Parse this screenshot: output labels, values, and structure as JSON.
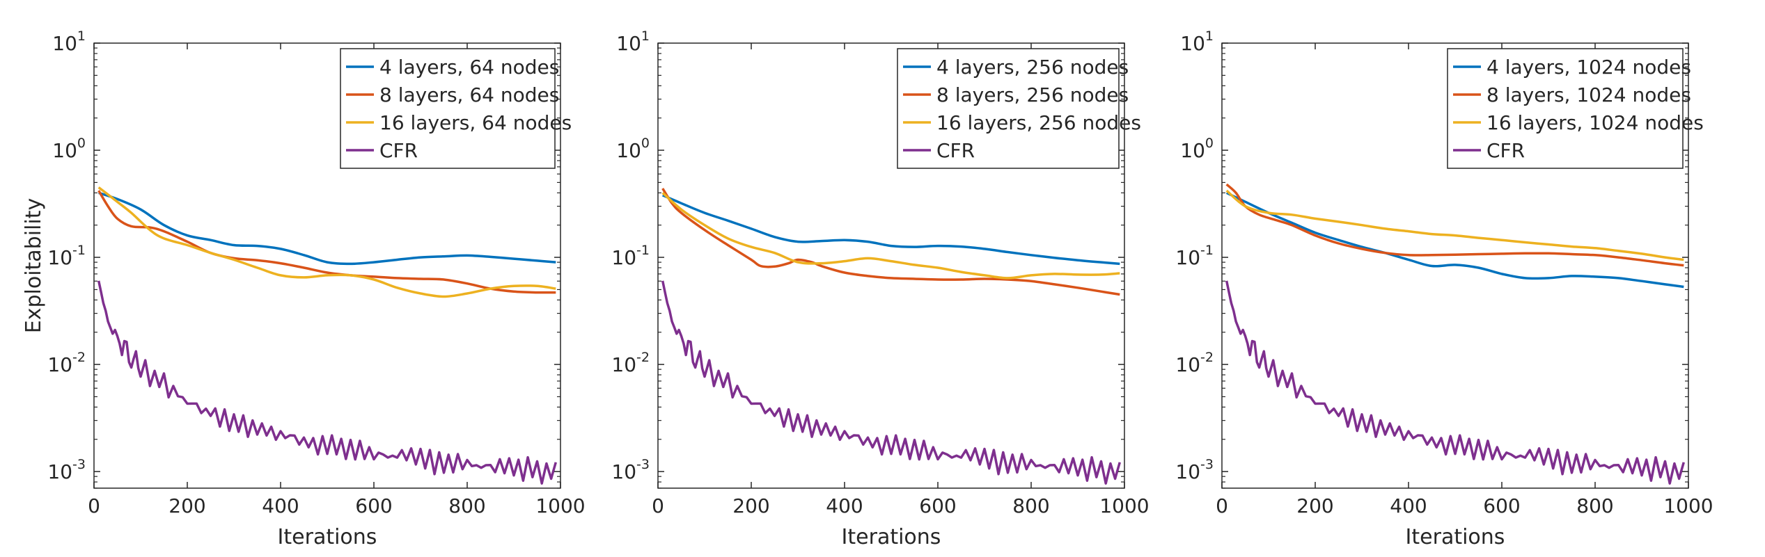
{
  "figure": {
    "ylabel": "Exploitability"
  },
  "colors": {
    "blue": "#0072BD",
    "orange": "#D95319",
    "yellow": "#EDB120",
    "purple": "#7E2F8E"
  },
  "chart_data": [
    {
      "type": "line",
      "xlabel": "Iterations",
      "ylabel": "Exploitability",
      "yscale": "log",
      "xlim": [
        0,
        1000
      ],
      "ylim": [
        0.0007,
        10
      ],
      "xticks": [
        0,
        200,
        400,
        600,
        800,
        1000
      ],
      "xtick_labels": [
        "0",
        "200",
        "400",
        "600",
        "800",
        "1000"
      ],
      "yticks": [
        {
          "base": "10",
          "exp": "-3"
        },
        {
          "base": "10",
          "exp": "-2"
        },
        {
          "base": "10",
          "exp": "-1"
        },
        {
          "base": "10",
          "exp": "0"
        },
        {
          "base": "10",
          "exp": "1"
        }
      ],
      "legend_position": "top-right",
      "grid": false,
      "series": [
        {
          "name": "4 layers, 64 nodes",
          "color": "blue",
          "x": [
            10,
            50,
            100,
            150,
            200,
            250,
            300,
            350,
            400,
            450,
            500,
            550,
            600,
            650,
            700,
            750,
            800,
            850,
            900,
            950,
            990
          ],
          "y": [
            0.4,
            0.35,
            0.28,
            0.2,
            0.16,
            0.145,
            0.13,
            0.128,
            0.12,
            0.105,
            0.09,
            0.087,
            0.09,
            0.095,
            0.1,
            0.102,
            0.104,
            0.101,
            0.097,
            0.093,
            0.09
          ]
        },
        {
          "name": "8 layers, 64 nodes",
          "color": "orange",
          "x": [
            10,
            30,
            50,
            80,
            120,
            150,
            200,
            250,
            300,
            350,
            400,
            450,
            500,
            550,
            600,
            650,
            700,
            750,
            800,
            850,
            900,
            950,
            990
          ],
          "y": [
            0.42,
            0.3,
            0.23,
            0.195,
            0.19,
            0.175,
            0.14,
            0.11,
            0.098,
            0.094,
            0.088,
            0.08,
            0.072,
            0.068,
            0.066,
            0.064,
            0.063,
            0.062,
            0.057,
            0.051,
            0.048,
            0.047,
            0.047
          ]
        },
        {
          "name": "16 layers, 64 nodes",
          "color": "yellow",
          "x": [
            10,
            50,
            80,
            120,
            150,
            200,
            250,
            300,
            350,
            400,
            450,
            500,
            550,
            600,
            650,
            700,
            750,
            800,
            850,
            900,
            950,
            990
          ],
          "y": [
            0.45,
            0.33,
            0.26,
            0.18,
            0.15,
            0.13,
            0.11,
            0.095,
            0.08,
            0.068,
            0.065,
            0.068,
            0.068,
            0.062,
            0.052,
            0.046,
            0.043,
            0.046,
            0.051,
            0.054,
            0.054,
            0.051
          ]
        },
        {
          "name": "CFR",
          "color": "purple",
          "kind": "cfr",
          "seed": 7,
          "x": [
            10,
            20,
            30,
            40,
            60,
            80,
            100,
            150,
            200,
            250,
            300,
            400,
            500,
            600,
            700,
            800,
            900,
            990
          ],
          "y": [
            0.06,
            0.04,
            0.025,
            0.021,
            0.015,
            0.0115,
            0.0095,
            0.0065,
            0.0045,
            0.0035,
            0.0029,
            0.0022,
            0.00175,
            0.00148,
            0.0013,
            0.00117,
            0.00108,
            0.001
          ]
        }
      ]
    },
    {
      "type": "line",
      "xlabel": "Iterations",
      "ylabel": "",
      "yscale": "log",
      "xlim": [
        0,
        1000
      ],
      "ylim": [
        0.0007,
        10
      ],
      "xticks": [
        0,
        200,
        400,
        600,
        800,
        1000
      ],
      "xtick_labels": [
        "0",
        "200",
        "400",
        "600",
        "800",
        "1000"
      ],
      "yticks": [
        {
          "base": "10",
          "exp": "-3"
        },
        {
          "base": "10",
          "exp": "-2"
        },
        {
          "base": "10",
          "exp": "-1"
        },
        {
          "base": "10",
          "exp": "0"
        },
        {
          "base": "10",
          "exp": "1"
        }
      ],
      "legend_position": "top-right",
      "grid": false,
      "series": [
        {
          "name": "4 layers, 256 nodes",
          "color": "blue",
          "x": [
            10,
            50,
            100,
            150,
            200,
            250,
            300,
            350,
            400,
            450,
            500,
            550,
            600,
            650,
            700,
            750,
            800,
            850,
            900,
            950,
            990
          ],
          "y": [
            0.38,
            0.32,
            0.26,
            0.22,
            0.185,
            0.155,
            0.14,
            0.142,
            0.145,
            0.14,
            0.128,
            0.125,
            0.128,
            0.126,
            0.12,
            0.112,
            0.105,
            0.099,
            0.094,
            0.09,
            0.087
          ]
        },
        {
          "name": "8 layers, 256 nodes",
          "color": "orange",
          "x": [
            10,
            30,
            50,
            100,
            150,
            200,
            220,
            250,
            280,
            300,
            330,
            350,
            400,
            450,
            500,
            550,
            600,
            650,
            700,
            750,
            800,
            850,
            900,
            950,
            990
          ],
          "y": [
            0.44,
            0.32,
            0.26,
            0.18,
            0.13,
            0.095,
            0.083,
            0.082,
            0.088,
            0.095,
            0.09,
            0.083,
            0.072,
            0.067,
            0.064,
            0.063,
            0.062,
            0.062,
            0.063,
            0.062,
            0.06,
            0.056,
            0.052,
            0.048,
            0.045
          ]
        },
        {
          "name": "16 layers, 256 nodes",
          "color": "yellow",
          "x": [
            10,
            50,
            100,
            150,
            200,
            250,
            300,
            350,
            400,
            450,
            500,
            550,
            600,
            650,
            700,
            750,
            800,
            850,
            900,
            950,
            990
          ],
          "y": [
            0.4,
            0.28,
            0.2,
            0.15,
            0.125,
            0.11,
            0.09,
            0.088,
            0.092,
            0.098,
            0.092,
            0.085,
            0.08,
            0.073,
            0.068,
            0.064,
            0.068,
            0.07,
            0.069,
            0.069,
            0.071
          ]
        },
        {
          "name": "CFR",
          "color": "purple",
          "kind": "cfr",
          "seed": 7,
          "x": [
            10,
            20,
            30,
            40,
            60,
            80,
            100,
            150,
            200,
            250,
            300,
            400,
            500,
            600,
            700,
            800,
            900,
            990
          ],
          "y": [
            0.06,
            0.04,
            0.025,
            0.021,
            0.015,
            0.0115,
            0.0095,
            0.0065,
            0.0045,
            0.0035,
            0.0029,
            0.0022,
            0.00175,
            0.00148,
            0.0013,
            0.00117,
            0.00108,
            0.001
          ]
        }
      ]
    },
    {
      "type": "line",
      "xlabel": "Iterations",
      "ylabel": "",
      "yscale": "log",
      "xlim": [
        0,
        1000
      ],
      "ylim": [
        0.0007,
        10
      ],
      "xticks": [
        0,
        200,
        400,
        600,
        800,
        1000
      ],
      "xtick_labels": [
        "0",
        "200",
        "400",
        "600",
        "800",
        "1000"
      ],
      "yticks": [
        {
          "base": "10",
          "exp": "-3"
        },
        {
          "base": "10",
          "exp": "-2"
        },
        {
          "base": "10",
          "exp": "-1"
        },
        {
          "base": "10",
          "exp": "0"
        },
        {
          "base": "10",
          "exp": "1"
        }
      ],
      "legend_position": "top-right",
      "grid": false,
      "series": [
        {
          "name": "4 layers, 1024 nodes",
          "color": "blue",
          "x": [
            10,
            50,
            100,
            150,
            200,
            250,
            300,
            350,
            400,
            450,
            500,
            550,
            600,
            650,
            700,
            750,
            800,
            850,
            900,
            950,
            990
          ],
          "y": [
            0.4,
            0.33,
            0.26,
            0.21,
            0.17,
            0.145,
            0.125,
            0.11,
            0.095,
            0.083,
            0.085,
            0.08,
            0.07,
            0.064,
            0.064,
            0.067,
            0.066,
            0.064,
            0.06,
            0.056,
            0.053
          ]
        },
        {
          "name": "8 layers, 1024 nodes",
          "color": "orange",
          "x": [
            10,
            30,
            50,
            80,
            120,
            150,
            200,
            250,
            300,
            350,
            400,
            450,
            500,
            550,
            600,
            650,
            700,
            750,
            800,
            850,
            900,
            950,
            990
          ],
          "y": [
            0.48,
            0.4,
            0.3,
            0.25,
            0.22,
            0.2,
            0.16,
            0.135,
            0.12,
            0.11,
            0.105,
            0.105,
            0.106,
            0.107,
            0.108,
            0.109,
            0.109,
            0.107,
            0.105,
            0.1,
            0.094,
            0.088,
            0.084
          ]
        },
        {
          "name": "16 layers, 1024 nodes",
          "color": "yellow",
          "x": [
            10,
            50,
            100,
            150,
            200,
            250,
            300,
            350,
            400,
            450,
            500,
            550,
            600,
            650,
            700,
            750,
            800,
            850,
            900,
            950,
            990
          ],
          "y": [
            0.42,
            0.3,
            0.26,
            0.25,
            0.23,
            0.215,
            0.2,
            0.185,
            0.175,
            0.165,
            0.16,
            0.152,
            0.145,
            0.138,
            0.132,
            0.126,
            0.122,
            0.115,
            0.108,
            0.1,
            0.095
          ]
        },
        {
          "name": "CFR",
          "color": "purple",
          "kind": "cfr",
          "seed": 7,
          "x": [
            10,
            20,
            30,
            40,
            60,
            80,
            100,
            150,
            200,
            250,
            300,
            400,
            500,
            600,
            700,
            800,
            900,
            990
          ],
          "y": [
            0.06,
            0.04,
            0.025,
            0.021,
            0.015,
            0.0115,
            0.0095,
            0.0065,
            0.0045,
            0.0035,
            0.0029,
            0.0022,
            0.00175,
            0.00148,
            0.0013,
            0.00117,
            0.00108,
            0.001
          ]
        }
      ]
    }
  ]
}
